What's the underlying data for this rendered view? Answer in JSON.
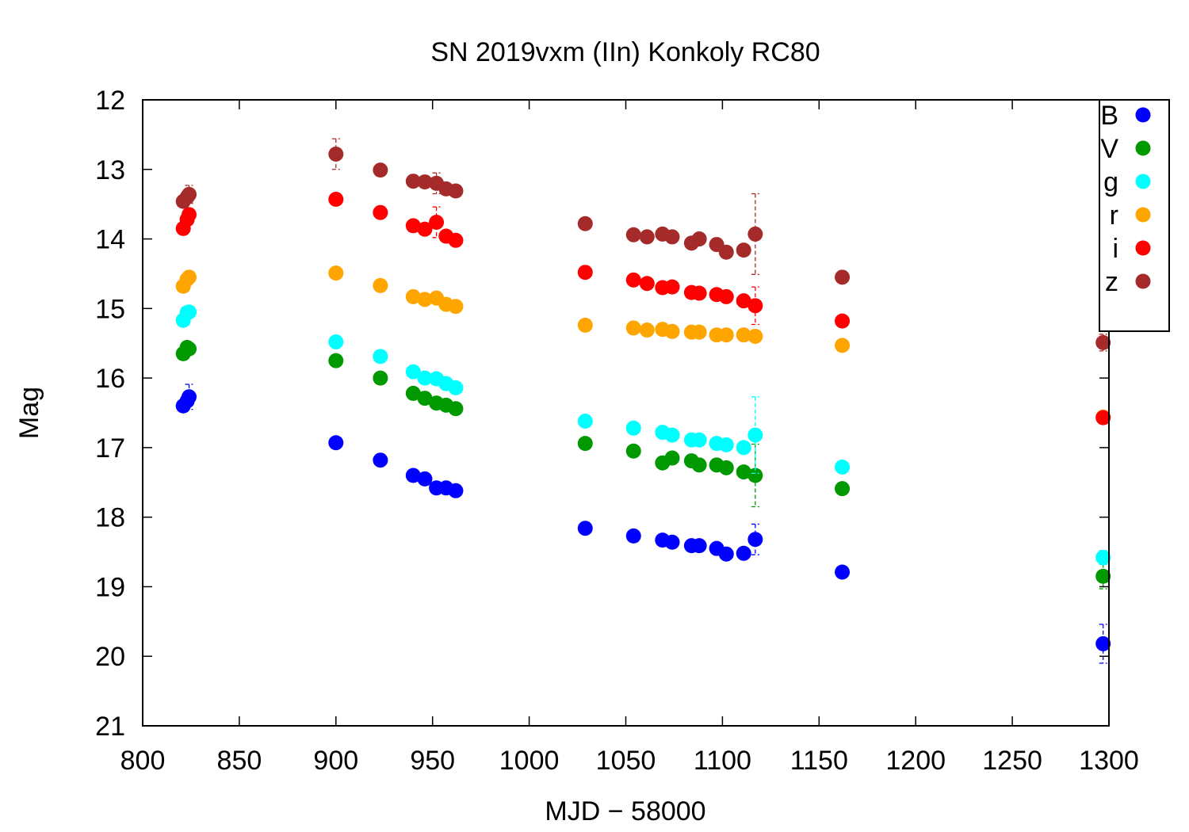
{
  "chart_data": {
    "type": "scatter",
    "title": "SN 2019vxm (IIn) Konkoly RC80",
    "xlabel": "MJD − 58000",
    "ylabel": "Mag",
    "xlim": [
      800,
      1300
    ],
    "ylim": [
      21,
      12
    ],
    "y_inverted": true,
    "xticks": [
      "800",
      "850",
      "900",
      "950",
      "1000",
      "1050",
      "1100",
      "1150",
      "1200",
      "1250",
      "1300"
    ],
    "yticks": [
      "12",
      "13",
      "14",
      "15",
      "16",
      "17",
      "18",
      "19",
      "20",
      "21"
    ],
    "grid": false,
    "legend_position": "top-right",
    "series": [
      {
        "name": "B",
        "color": "#0000ff",
        "x": [
          821,
          823,
          824,
          900,
          923,
          940,
          946,
          952,
          957,
          962,
          1029,
          1054,
          1069,
          1074,
          1084,
          1088,
          1097,
          1102,
          1111,
          1117,
          1162,
          1297
        ],
        "y": [
          16.4,
          16.33,
          16.27,
          16.93,
          17.18,
          17.4,
          17.45,
          17.58,
          17.58,
          17.62,
          18.16,
          18.27,
          18.33,
          18.36,
          18.41,
          18.41,
          18.45,
          18.53,
          18.52,
          18.32,
          18.79,
          19.82
        ],
        "yerr": [
          0.04,
          0.04,
          0.18,
          0.03,
          0.03,
          0.03,
          0.03,
          0.04,
          0.04,
          0.04,
          0.04,
          0.04,
          0.08,
          0.05,
          0.04,
          0.04,
          0.04,
          0.04,
          0.04,
          0.22,
          0.08,
          0.28
        ]
      },
      {
        "name": "V",
        "color": "#009900",
        "x": [
          821,
          823,
          824,
          900,
          923,
          940,
          946,
          952,
          957,
          962,
          1029,
          1054,
          1069,
          1074,
          1084,
          1088,
          1097,
          1102,
          1111,
          1117,
          1162,
          1297
        ],
        "y": [
          15.65,
          15.56,
          15.58,
          15.75,
          16.0,
          16.22,
          16.29,
          16.36,
          16.39,
          16.44,
          16.94,
          17.05,
          17.22,
          17.15,
          17.19,
          17.25,
          17.25,
          17.29,
          17.35,
          17.4,
          17.59,
          18.85
        ],
        "yerr": [
          0.03,
          0.03,
          0.03,
          0.03,
          0.03,
          0.03,
          0.03,
          0.03,
          0.03,
          0.03,
          0.03,
          0.03,
          0.04,
          0.04,
          0.03,
          0.03,
          0.03,
          0.03,
          0.03,
          0.45,
          0.04,
          0.18
        ]
      },
      {
        "name": "g",
        "color": "#00ffff",
        "x": [
          821,
          823,
          824,
          900,
          923,
          940,
          946,
          952,
          957,
          962,
          1029,
          1054,
          1069,
          1074,
          1084,
          1088,
          1097,
          1102,
          1111,
          1117,
          1162,
          1297
        ],
        "y": [
          15.17,
          15.06,
          15.05,
          15.48,
          15.69,
          15.91,
          16.0,
          16.01,
          16.08,
          16.14,
          16.62,
          16.72,
          16.78,
          16.82,
          16.89,
          16.89,
          16.94,
          16.96,
          17.0,
          16.82,
          17.28,
          18.58
        ],
        "yerr": [
          0.03,
          0.03,
          0.03,
          0.03,
          0.03,
          0.03,
          0.03,
          0.03,
          0.03,
          0.03,
          0.03,
          0.03,
          0.04,
          0.03,
          0.03,
          0.03,
          0.03,
          0.03,
          0.03,
          0.55,
          0.04,
          0.1
        ]
      },
      {
        "name": "r",
        "color": "#ffa500",
        "x": [
          821,
          823,
          824,
          900,
          923,
          940,
          946,
          952,
          957,
          962,
          1029,
          1054,
          1061,
          1069,
          1074,
          1084,
          1088,
          1097,
          1102,
          1111,
          1117,
          1162,
          1297
        ],
        "y": [
          14.68,
          14.58,
          14.55,
          14.49,
          14.67,
          14.83,
          14.87,
          14.85,
          14.94,
          14.97,
          15.24,
          15.28,
          15.31,
          15.3,
          15.33,
          15.34,
          15.34,
          15.38,
          15.38,
          15.38,
          15.4,
          15.53,
          16.56
        ],
        "yerr": [
          0.03,
          0.03,
          0.03,
          0.03,
          0.03,
          0.03,
          0.03,
          0.03,
          0.03,
          0.03,
          0.03,
          0.03,
          0.03,
          0.03,
          0.03,
          0.03,
          0.03,
          0.03,
          0.03,
          0.03,
          0.05,
          0.04,
          0.05
        ]
      },
      {
        "name": "i",
        "color": "#ff0000",
        "x": [
          821,
          823,
          824,
          900,
          923,
          940,
          946,
          952,
          957,
          962,
          1029,
          1054,
          1061,
          1069,
          1074,
          1084,
          1088,
          1097,
          1102,
          1111,
          1117,
          1162,
          1297
        ],
        "y": [
          13.85,
          13.72,
          13.65,
          13.43,
          13.62,
          13.81,
          13.86,
          13.76,
          13.96,
          14.02,
          14.48,
          14.59,
          14.64,
          14.7,
          14.69,
          14.77,
          14.78,
          14.8,
          14.83,
          14.89,
          14.96,
          15.18,
          16.57
        ],
        "yerr": [
          0.03,
          0.03,
          0.03,
          0.03,
          0.03,
          0.03,
          0.05,
          0.22,
          0.04,
          0.03,
          0.03,
          0.03,
          0.03,
          0.03,
          0.03,
          0.03,
          0.03,
          0.03,
          0.03,
          0.03,
          0.27,
          0.04,
          0.04
        ]
      },
      {
        "name": "z",
        "color": "#a52a2a",
        "x": [
          821,
          823,
          824,
          900,
          923,
          940,
          946,
          952,
          957,
          962,
          1029,
          1054,
          1061,
          1069,
          1074,
          1084,
          1088,
          1097,
          1102,
          1111,
          1117,
          1162,
          1297
        ],
        "y": [
          13.46,
          13.4,
          13.36,
          12.78,
          13.01,
          13.17,
          13.18,
          13.2,
          13.28,
          13.31,
          13.78,
          13.94,
          13.97,
          13.93,
          13.97,
          14.06,
          14.0,
          14.08,
          14.19,
          14.16,
          13.93,
          14.55,
          15.49
        ],
        "yerr": [
          0.04,
          0.04,
          0.13,
          0.22,
          0.04,
          0.04,
          0.05,
          0.15,
          0.05,
          0.05,
          0.04,
          0.04,
          0.04,
          0.07,
          0.05,
          0.05,
          0.05,
          0.05,
          0.05,
          0.05,
          0.58,
          0.05,
          0.12
        ]
      }
    ]
  }
}
